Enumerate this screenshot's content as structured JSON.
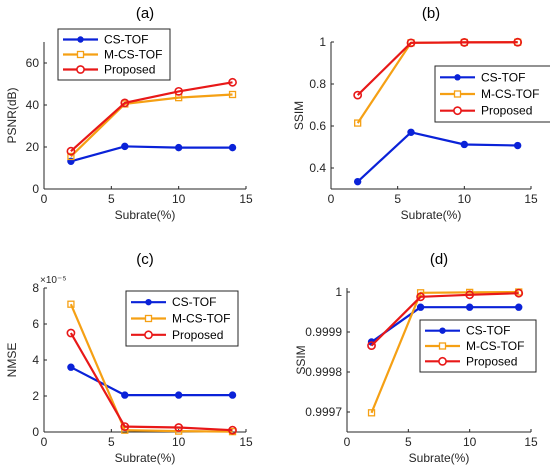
{
  "series_styles": [
    {
      "name": "CS-TOF",
      "color": "#0a22d8",
      "marker": "circle-filled"
    },
    {
      "name": "M-CS-TOF",
      "color": "#f5a014",
      "marker": "square-open"
    },
    {
      "name": "Proposed",
      "color": "#e81818",
      "marker": "circle-open"
    }
  ],
  "chart_data": [
    {
      "type": "line",
      "title": "(a)",
      "xlabel": "Subrate(%)",
      "ylabel": "PSNR(dB)",
      "x": [
        2,
        6,
        10,
        14
      ],
      "xlim": [
        0,
        15
      ],
      "ylim": [
        0,
        70
      ],
      "xticks": [
        0,
        5,
        10,
        15
      ],
      "yticks": [
        0,
        20,
        40,
        60
      ],
      "ytick_labels": [
        "0",
        "20",
        "40",
        "60"
      ],
      "legend": "top-left",
      "series": [
        {
          "name": "CS-TOF",
          "values": [
            13.2,
            20.3,
            19.7,
            19.7
          ]
        },
        {
          "name": "M-CS-TOF",
          "values": [
            15.5,
            40.5,
            43.5,
            45.0
          ]
        },
        {
          "name": "Proposed",
          "values": [
            18.0,
            41.0,
            46.5,
            50.8
          ]
        }
      ]
    },
    {
      "type": "line",
      "title": "(b)",
      "xlabel": "Subrate(%)",
      "ylabel": "SSIM",
      "x": [
        2,
        6,
        10,
        14
      ],
      "xlim": [
        0,
        15
      ],
      "ylim": [
        0.3,
        1.0
      ],
      "xticks": [
        0,
        5,
        10,
        15
      ],
      "yticks": [
        0.4,
        0.6,
        0.8,
        1.0
      ],
      "ytick_labels": [
        "0.4",
        "0.6",
        "0.8",
        "1"
      ],
      "legend": "right",
      "series": [
        {
          "name": "CS-TOF",
          "values": [
            0.335,
            0.57,
            0.512,
            0.507
          ]
        },
        {
          "name": "M-CS-TOF",
          "values": [
            0.614,
            0.996,
            0.998,
            0.999
          ]
        },
        {
          "name": "Proposed",
          "values": [
            0.747,
            0.996,
            0.998,
            0.999
          ]
        }
      ]
    },
    {
      "type": "line",
      "title": "(c)",
      "xlabel": "Subrate(%)",
      "ylabel": "NMSE",
      "exponent_label": "×10⁻⁵",
      "x": [
        2,
        6,
        10,
        14
      ],
      "xlim": [
        0,
        15
      ],
      "ylim": [
        0,
        8
      ],
      "xticks": [
        0,
        5,
        10,
        15
      ],
      "yticks": [
        0,
        2,
        4,
        6,
        8
      ],
      "ytick_labels": [
        "0",
        "2",
        "4",
        "6",
        "8"
      ],
      "legend": "top-right",
      "series": [
        {
          "name": "CS-TOF",
          "values": [
            3.6,
            2.05,
            2.05,
            2.05
          ]
        },
        {
          "name": "M-CS-TOF",
          "values": [
            7.1,
            0.1,
            0.05,
            0.02
          ]
        },
        {
          "name": "Proposed",
          "values": [
            5.5,
            0.3,
            0.25,
            0.1
          ]
        }
      ]
    },
    {
      "type": "line",
      "title": "(d)",
      "xlabel": "Subrate(%)",
      "ylabel": "SSIM",
      "x": [
        2,
        6,
        10,
        14
      ],
      "xlim": [
        0,
        15
      ],
      "ylim": [
        0.99965,
        1.00001
      ],
      "xticks": [
        0,
        5,
        10,
        15
      ],
      "yticks": [
        0.9997,
        0.9998,
        0.9999,
        1.0
      ],
      "ytick_labels": [
        "0.9997",
        "0.9998",
        "0.9999",
        "1"
      ],
      "legend": "right",
      "series": [
        {
          "name": "CS-TOF",
          "values": [
            0.999875,
            0.999962,
            0.999962,
            0.999962
          ]
        },
        {
          "name": "M-CS-TOF",
          "values": [
            0.999698,
            0.999998,
            0.999999,
            1.0
          ]
        },
        {
          "name": "Proposed",
          "values": [
            0.999866,
            0.999988,
            0.999993,
            0.999997
          ]
        }
      ]
    }
  ]
}
